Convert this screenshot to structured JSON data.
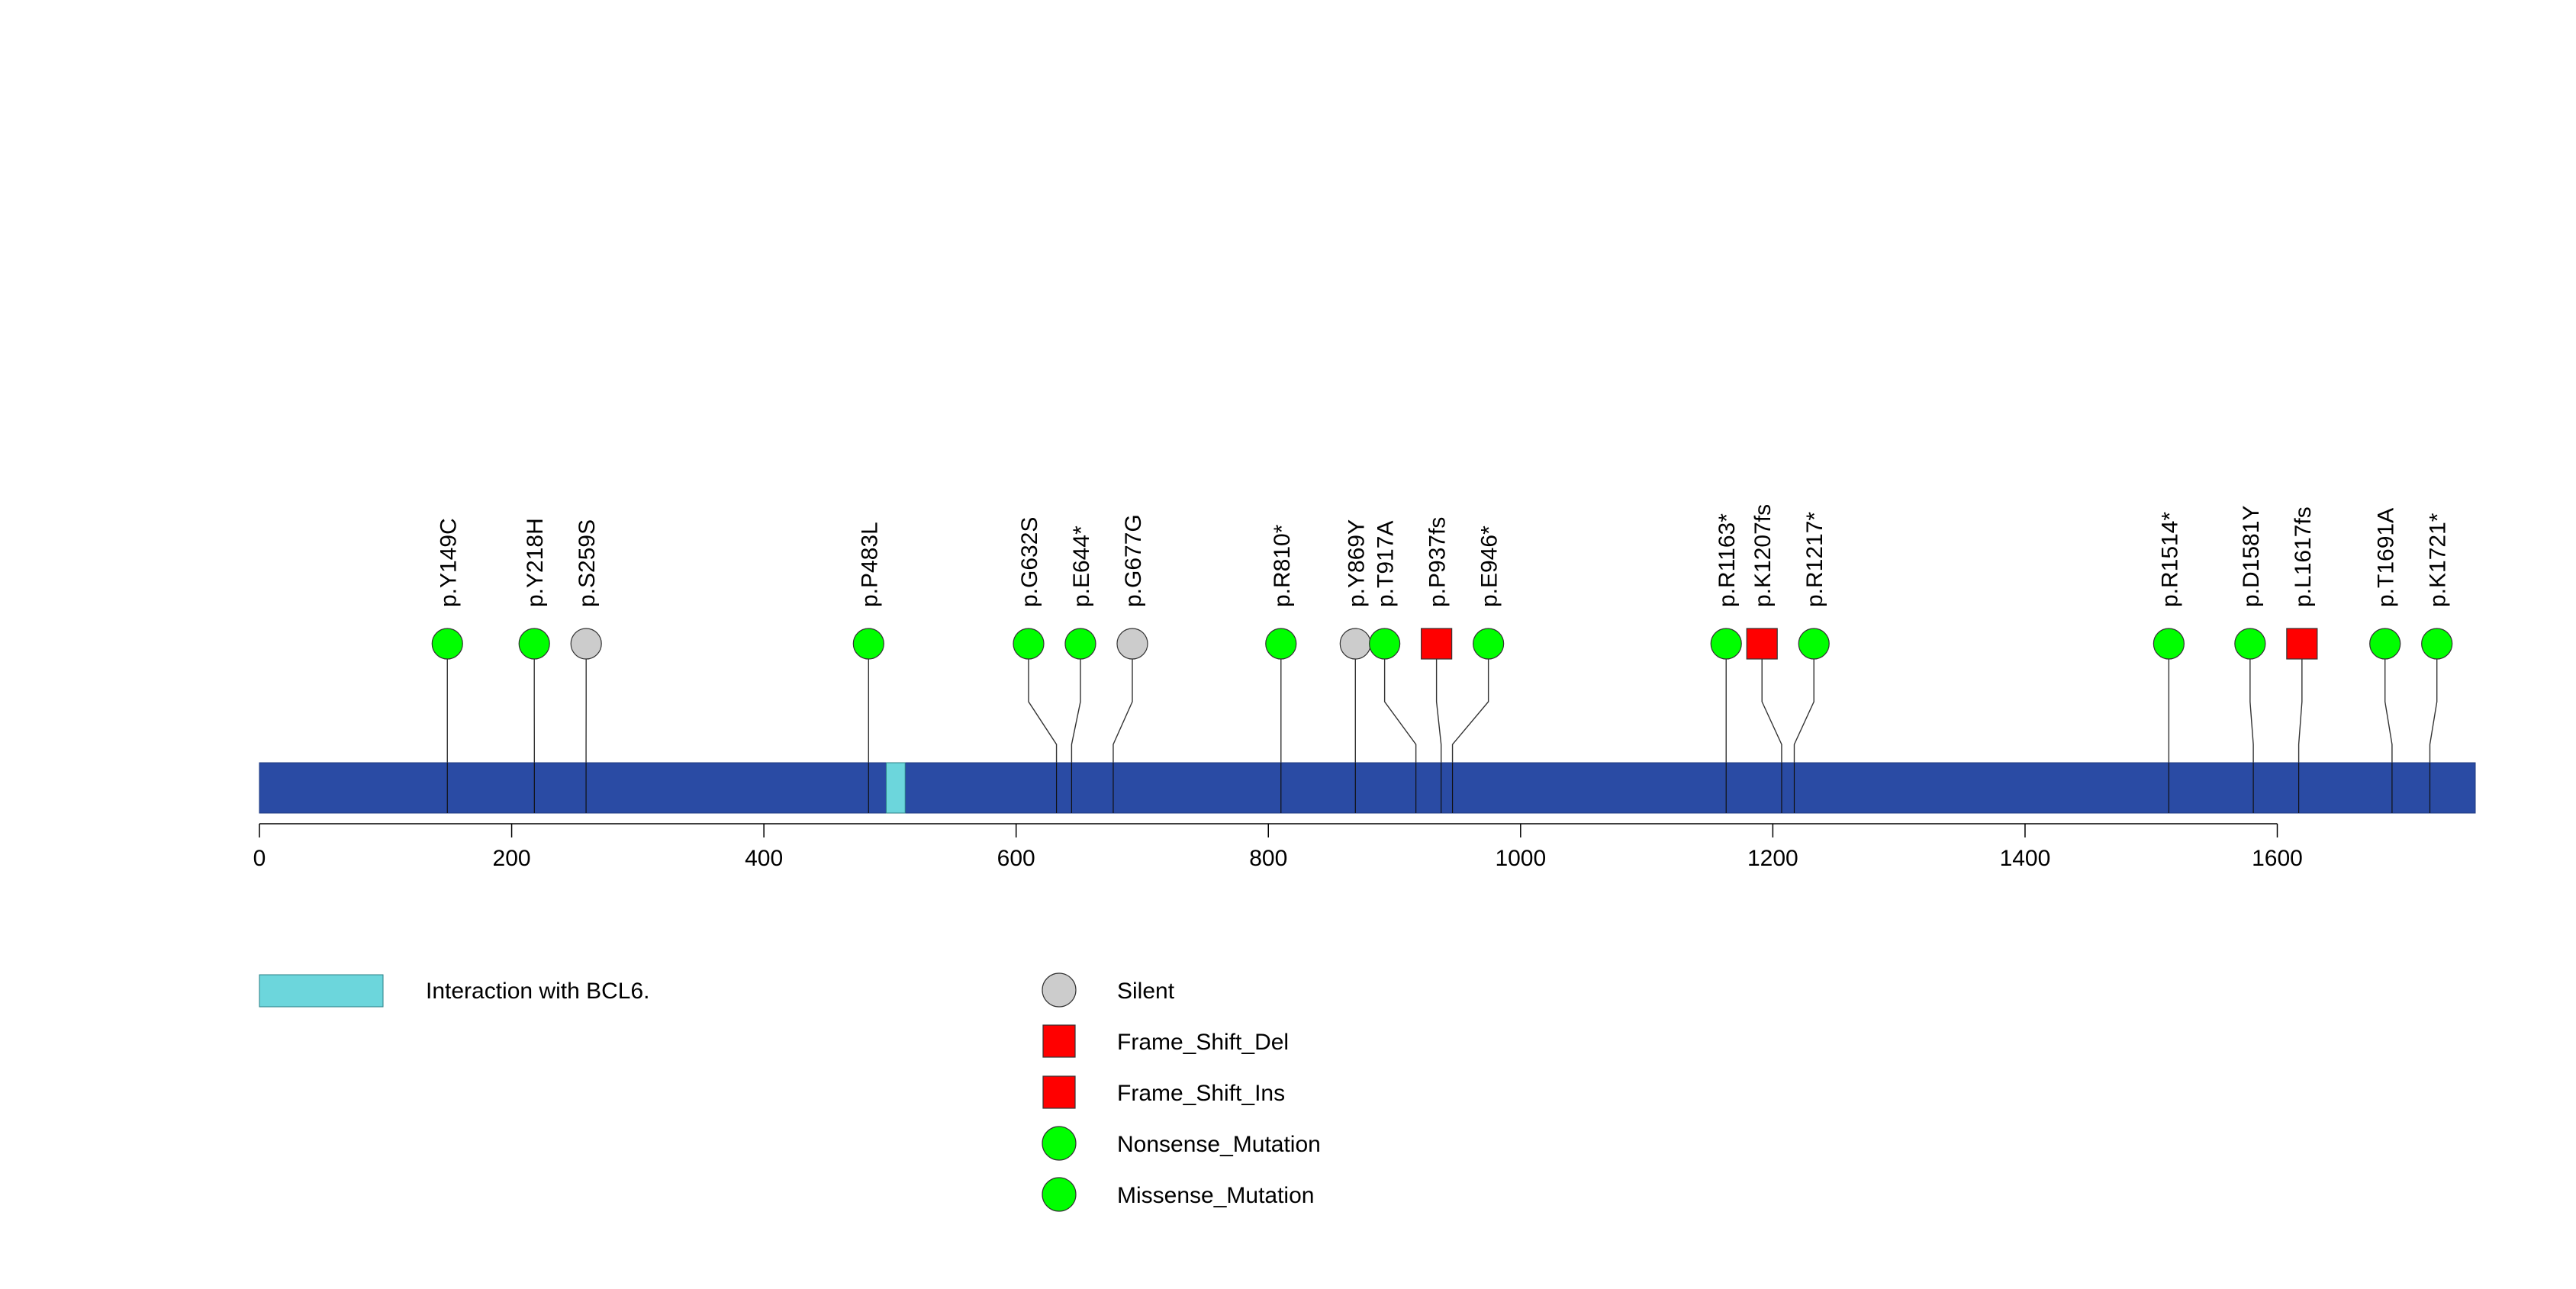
{
  "chart_data": {
    "type": "lollipop",
    "protein_length": 1757,
    "xlim": [
      0,
      1757
    ],
    "x_ticks": [
      0,
      200,
      400,
      600,
      800,
      1000,
      1200,
      1400,
      1600
    ],
    "domains": [
      {
        "name": "Interaction with BCL6.",
        "start": 497,
        "end": 512,
        "color": "#6cd6dc"
      }
    ],
    "backbone_color": "#2a4ba4",
    "mutation_types": [
      {
        "name": "Silent",
        "shape": "circle",
        "color": "#cccccc"
      },
      {
        "name": "Frame_Shift_Del",
        "shape": "square",
        "color": "#ff0000"
      },
      {
        "name": "Frame_Shift_Ins",
        "shape": "square",
        "color": "#ff0000"
      },
      {
        "name": "Nonsense_Mutation",
        "shape": "circle",
        "color": "#00ff00"
      },
      {
        "name": "Missense_Mutation",
        "shape": "circle",
        "color": "#00ff00"
      }
    ],
    "mutations": [
      {
        "label": "p.Y149C",
        "position": 149,
        "type": "Missense_Mutation"
      },
      {
        "label": "p.Y218H",
        "position": 218,
        "type": "Missense_Mutation"
      },
      {
        "label": "p.S259S",
        "position": 259,
        "type": "Silent"
      },
      {
        "label": "p.P483L",
        "position": 483,
        "type": "Missense_Mutation"
      },
      {
        "label": "p.G632S",
        "position": 632,
        "type": "Missense_Mutation"
      },
      {
        "label": "p.E644*",
        "position": 644,
        "type": "Nonsense_Mutation"
      },
      {
        "label": "p.G677G",
        "position": 677,
        "type": "Silent"
      },
      {
        "label": "p.R810*",
        "position": 810,
        "type": "Nonsense_Mutation"
      },
      {
        "label": "p.Y869Y",
        "position": 869,
        "type": "Silent"
      },
      {
        "label": "p.T917A",
        "position": 917,
        "type": "Missense_Mutation"
      },
      {
        "label": "p.P937fs",
        "position": 937,
        "type": "Frame_Shift_Del"
      },
      {
        "label": "p.E946*",
        "position": 946,
        "type": "Nonsense_Mutation"
      },
      {
        "label": "p.R1163*",
        "position": 1163,
        "type": "Nonsense_Mutation"
      },
      {
        "label": "p.K1207fs",
        "position": 1207,
        "type": "Frame_Shift_Ins"
      },
      {
        "label": "p.R1217*",
        "position": 1217,
        "type": "Nonsense_Mutation"
      },
      {
        "label": "p.R1514*",
        "position": 1514,
        "type": "Nonsense_Mutation"
      },
      {
        "label": "p.D1581Y",
        "position": 1581,
        "type": "Missense_Mutation"
      },
      {
        "label": "p.L1617fs",
        "position": 1617,
        "type": "Frame_Shift_Del"
      },
      {
        "label": "p.T1691A",
        "position": 1691,
        "type": "Missense_Mutation"
      },
      {
        "label": "p.K1721*",
        "position": 1721,
        "type": "Nonsense_Mutation"
      }
    ]
  }
}
